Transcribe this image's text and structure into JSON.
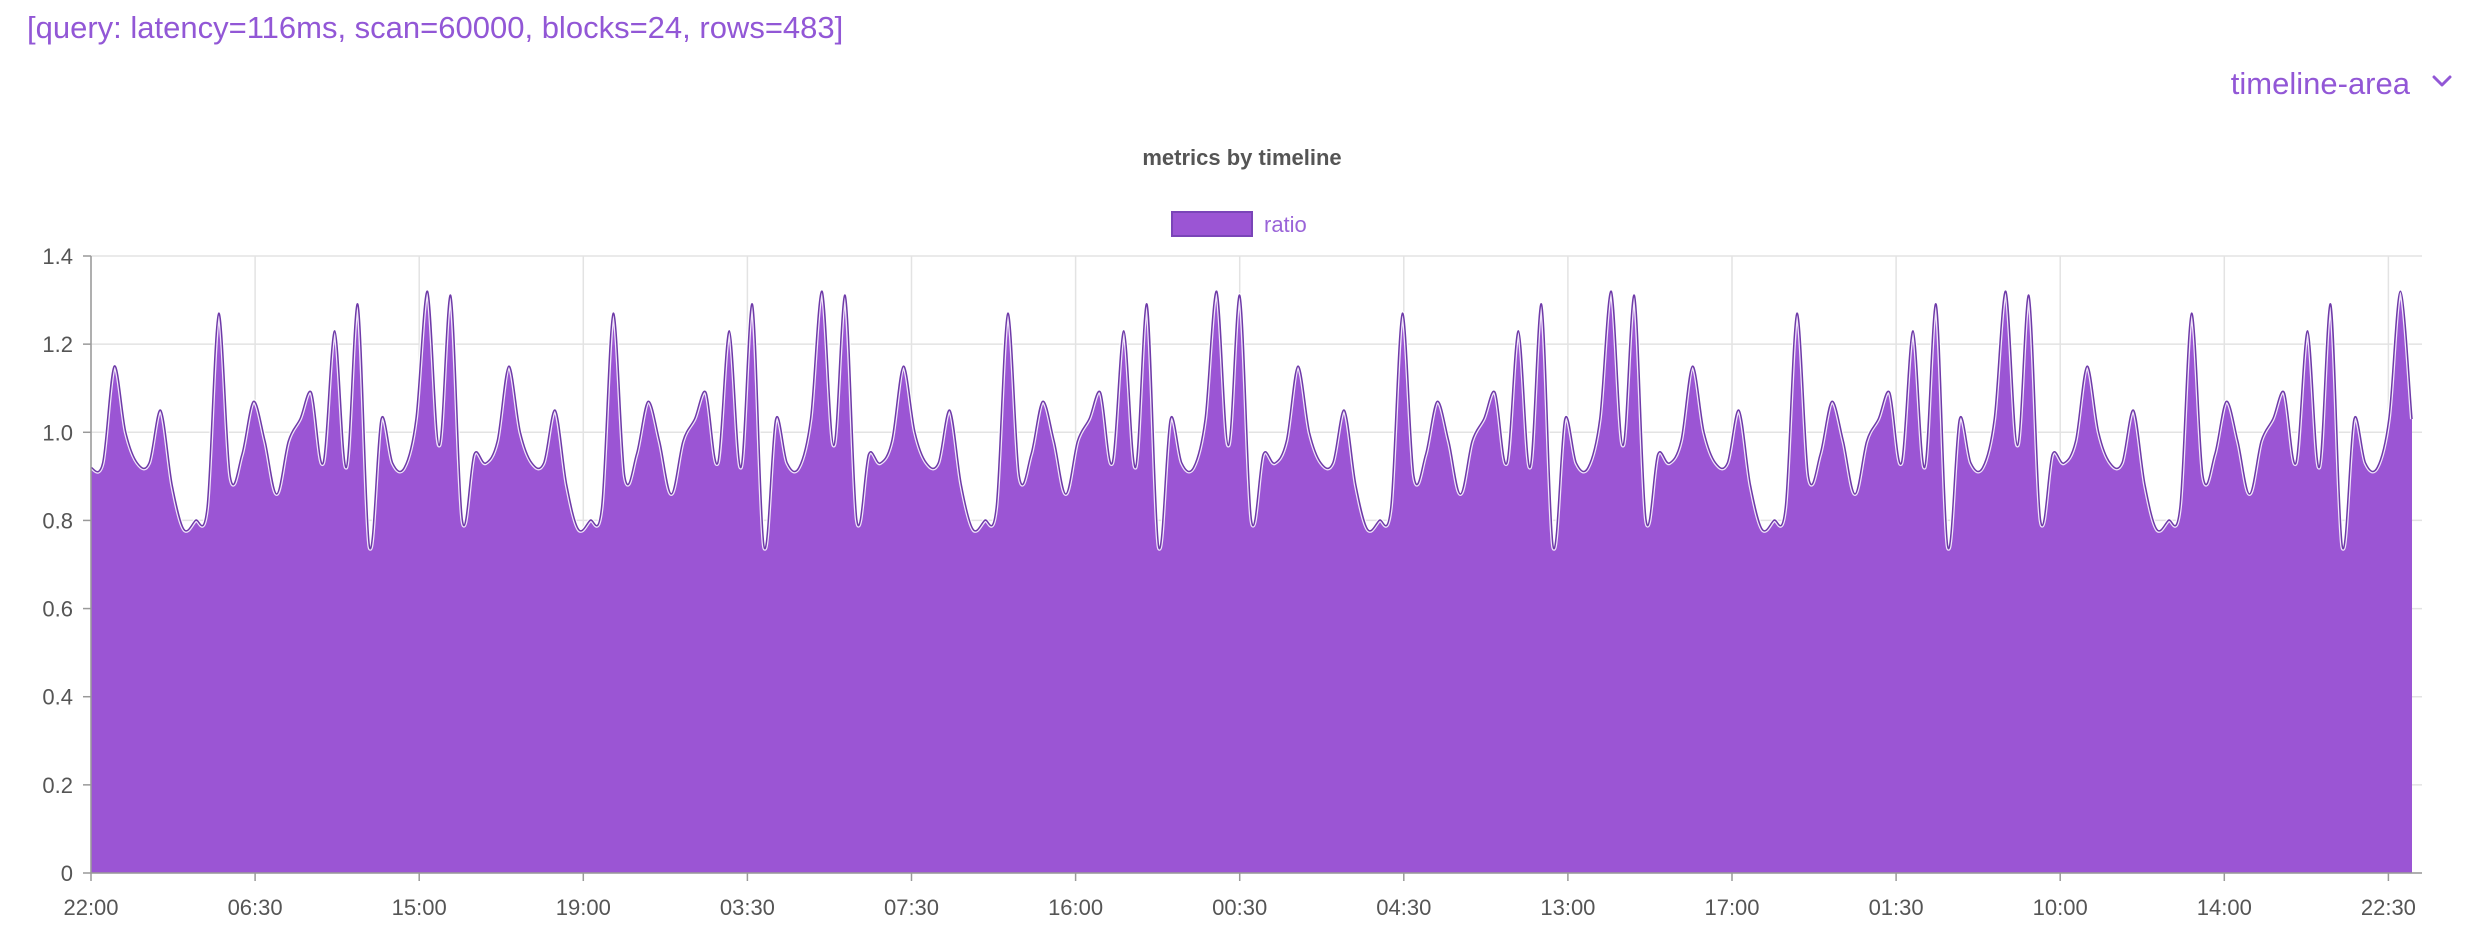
{
  "header": {
    "query_info": "[query: latency=116ms, scan=60000, blocks=24, rows=483]"
  },
  "chart_selector": {
    "selected": "timeline-area",
    "icon": "chevron-down-icon"
  },
  "colors": {
    "accent": "#9257d6",
    "area_fill": "#9b55d4",
    "area_stroke": "#6e3aa8",
    "grid": "#e3e3e3"
  },
  "chart_data": {
    "type": "area",
    "title": "metrics by timeline",
    "legend": {
      "position": "top",
      "entries": [
        "ratio"
      ]
    },
    "xlabel": "",
    "ylabel": "",
    "ylim": [
      0,
      1.4
    ],
    "yticks": [
      "0",
      "0.2",
      "0.4",
      "0.6",
      "0.8",
      "1.0",
      "1.2",
      "1.4"
    ],
    "xticks": [
      "22:00",
      "06:30",
      "15:00",
      "19:00",
      "03:30",
      "07:30",
      "16:00",
      "00:30",
      "04:30",
      "13:00",
      "17:00",
      "01:30",
      "10:00",
      "14:00",
      "22:30"
    ],
    "grid": true,
    "series": [
      {
        "name": "ratio",
        "values": [
          0.92,
          0.93,
          1.15,
          1.0,
          0.93,
          0.93,
          1.05,
          0.88,
          0.78,
          0.8,
          0.83,
          1.27,
          0.9,
          0.95,
          1.07,
          0.98,
          0.86,
          0.98,
          1.03,
          1.09,
          0.93,
          1.23,
          0.92,
          1.29,
          0.74,
          1.03,
          0.93,
          0.92,
          1.03,
          1.32,
          0.97,
          1.31,
          0.8,
          0.95,
          0.93,
          0.98,
          1.15,
          1.0,
          0.93,
          0.93,
          1.05,
          0.88,
          0.78,
          0.8,
          0.83,
          1.27,
          0.9,
          0.95,
          1.07,
          0.98,
          0.86,
          0.98,
          1.03,
          1.09,
          0.93,
          1.23,
          0.92,
          1.29,
          0.74,
          1.03,
          0.93,
          0.92,
          1.03,
          1.32,
          0.97,
          1.31,
          0.8,
          0.95,
          0.93,
          0.98,
          1.15,
          1.0,
          0.93,
          0.93,
          1.05,
          0.88,
          0.78,
          0.8,
          0.83,
          1.27,
          0.9,
          0.95,
          1.07,
          0.98,
          0.86,
          0.98,
          1.03,
          1.09,
          0.93,
          1.23,
          0.92,
          1.29,
          0.74,
          1.03,
          0.93,
          0.92,
          1.03,
          1.32,
          0.97,
          1.31,
          0.8,
          0.95,
          0.93,
          0.98,
          1.15,
          1.0,
          0.93,
          0.93,
          1.05,
          0.88,
          0.78,
          0.8,
          0.83,
          1.27,
          0.9,
          0.95,
          1.07,
          0.98,
          0.86,
          0.98,
          1.03,
          1.09,
          0.93,
          1.23,
          0.92,
          1.29,
          0.74,
          1.03,
          0.93,
          0.92,
          1.03,
          1.32,
          0.97,
          1.31,
          0.8,
          0.95,
          0.93,
          0.98,
          1.15,
          1.0,
          0.93,
          0.93,
          1.05,
          0.88,
          0.78,
          0.8,
          0.83,
          1.27,
          0.9,
          0.95,
          1.07,
          0.98,
          0.86,
          0.98,
          1.03,
          1.09,
          0.93,
          1.23,
          0.92,
          1.29,
          0.74,
          1.03,
          0.93,
          0.92,
          1.03,
          1.32,
          0.97,
          1.31,
          0.8,
          0.95,
          0.93,
          0.98,
          1.15,
          1.0,
          0.93,
          0.93,
          1.05,
          0.88,
          0.78,
          0.8,
          0.83,
          1.27,
          0.9,
          0.95,
          1.07,
          0.98,
          0.86,
          0.98,
          1.03,
          1.09,
          0.93,
          1.23,
          0.92,
          1.29,
          0.74,
          1.03,
          0.93,
          0.92,
          1.03,
          1.32,
          1.03
        ]
      }
    ]
  }
}
